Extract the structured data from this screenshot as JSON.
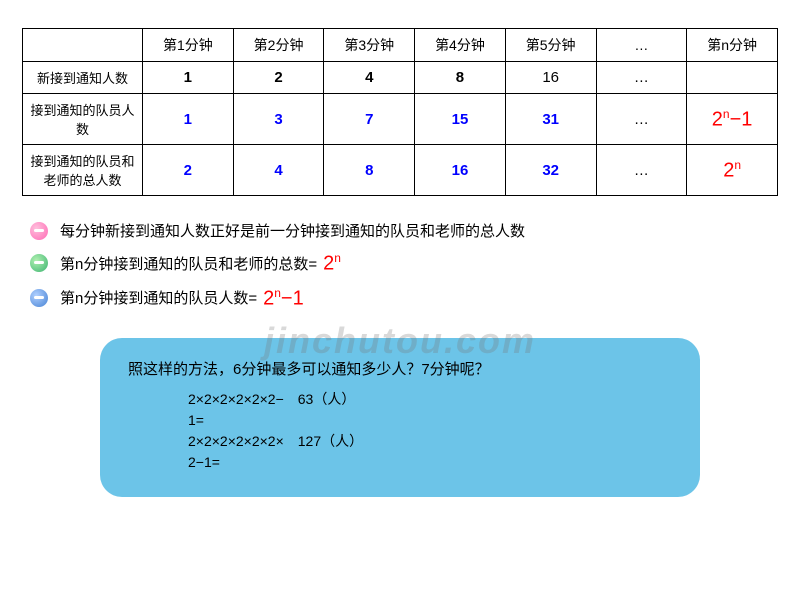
{
  "table": {
    "headers": [
      "",
      "第1分钟",
      "第2分钟",
      "第3分钟",
      "第4分钟",
      "第5分钟",
      "…",
      "第n分钟"
    ],
    "rows": [
      {
        "label": "新接到通知人数",
        "cells": [
          "1",
          "2",
          "4",
          "8",
          "16",
          "…",
          ""
        ],
        "style": "bold"
      },
      {
        "label": "接到通知的队员人数",
        "cells": [
          "1",
          "3",
          "7",
          "15",
          "31",
          "…"
        ],
        "formula": "2ⁿ−1",
        "style": "blue-bold"
      },
      {
        "label": "接到通知的队员和老师的总人数",
        "cells": [
          "2",
          "4",
          "8",
          "16",
          "32",
          "…"
        ],
        "formula": "2ⁿ",
        "style": "blue-bold"
      }
    ],
    "colors": {
      "blue": "#0000ff",
      "red": "#ff0000",
      "border": "#000000"
    }
  },
  "bullets": [
    {
      "icon": "pink",
      "text": "每分钟新接到通知人数正好是前一分钟接到通知的队员和老师的总人数",
      "formula": ""
    },
    {
      "icon": "green",
      "text": "第n分钟接到通知的队员和老师的总数=",
      "formula": "2ⁿ"
    },
    {
      "icon": "blue",
      "text": "第n分钟接到通知的队员人数=",
      "formula": "2ⁿ−1"
    }
  ],
  "watermark": "jinchutou.com",
  "blue_box": {
    "question": "照这样的方法，6分钟最多可以通知多少人？7分钟呢？",
    "lines": [
      "2×2×2×2×2×2−　63（人）",
      "1=",
      "2×2×2×2×2×2×　127（人）",
      "2−1="
    ],
    "background": "#6cc4e8",
    "border_radius": 22
  }
}
